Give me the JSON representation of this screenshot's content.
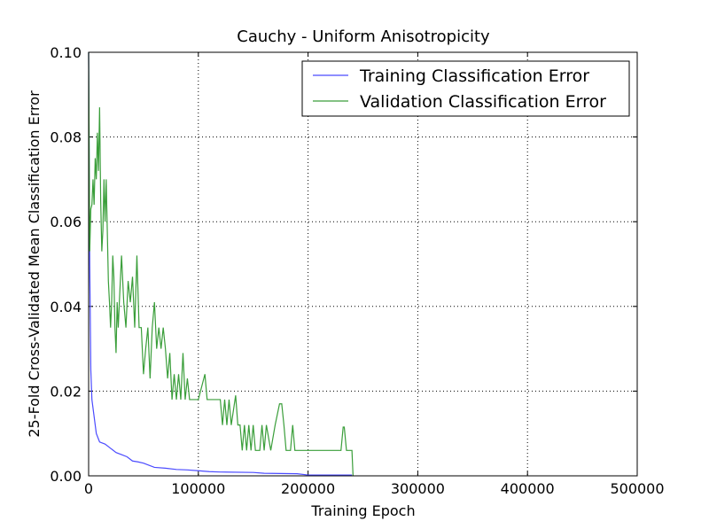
{
  "chart_data": {
    "type": "line",
    "title": "Cauchy - Uniform Anisotropicity",
    "xlabel": "Training Epoch",
    "ylabel": "25-Fold Cross-Validated Mean Classification Error",
    "xlim": [
      0,
      500000
    ],
    "ylim": [
      0,
      0.1
    ],
    "xticks": [
      0,
      100000,
      200000,
      300000,
      400000,
      500000
    ],
    "yticks": [
      {
        "value": 0,
        "label": "0.00"
      },
      {
        "value": 0.02,
        "label": "0.02"
      },
      {
        "value": 0.04,
        "label": "0.04"
      },
      {
        "value": 0.06,
        "label": "0.06"
      },
      {
        "value": 0.08,
        "label": "0.08"
      },
      {
        "value": 0.1,
        "label": "0.10"
      }
    ],
    "grid": true,
    "legend": "upper right",
    "series": [
      {
        "name": "Training Classification Error",
        "color": "#4b4bff",
        "x": [
          0,
          1000,
          2000,
          3000,
          5000,
          7000,
          10000,
          15000,
          20000,
          25000,
          30000,
          35000,
          40000,
          45000,
          50000,
          55000,
          60000,
          70000,
          80000,
          90000,
          100000,
          110000,
          120000,
          150000,
          160000,
          190000,
          200000,
          240000
        ],
        "values": [
          0.1,
          0.05,
          0.025,
          0.018,
          0.014,
          0.01,
          0.008,
          0.0075,
          0.0065,
          0.0055,
          0.005,
          0.0045,
          0.0035,
          0.0033,
          0.003,
          0.0025,
          0.002,
          0.0018,
          0.0015,
          0.0014,
          0.0012,
          0.001,
          0.0009,
          0.0008,
          0.0006,
          0.0005,
          0.0002,
          0.0002
        ]
      },
      {
        "name": "Validation Classification Error",
        "color": "#3a9e3a",
        "x": [
          0,
          1000,
          2000,
          3000,
          4000,
          5000,
          6000,
          7000,
          8000,
          9000,
          10000,
          11000,
          12000,
          13000,
          14000,
          15000,
          16000,
          17000,
          18000,
          19000,
          20000,
          21000,
          22000,
          23000,
          24000,
          25000,
          26000,
          27000,
          28000,
          30000,
          32000,
          34000,
          36000,
          38000,
          40000,
          42000,
          44000,
          46000,
          48000,
          50000,
          52000,
          54000,
          56000,
          58000,
          60000,
          62000,
          64000,
          66000,
          68000,
          70000,
          72000,
          74000,
          76000,
          78000,
          80000,
          82000,
          84000,
          86000,
          88000,
          90000,
          92000,
          96000,
          100000,
          106000,
          108000,
          120000,
          122000,
          124000,
          126000,
          128000,
          130000,
          134000,
          136000,
          138000,
          140000,
          142000,
          144000,
          146000,
          148000,
          150000,
          152000,
          156000,
          158000,
          160000,
          162000,
          166000,
          170000,
          174000,
          176000,
          178000,
          180000,
          184000,
          186000,
          188000,
          230000,
          232000,
          233000,
          235000,
          240000,
          241000
        ],
        "values": [
          0.1,
          0.053,
          0.063,
          0.064,
          0.07,
          0.064,
          0.075,
          0.07,
          0.081,
          0.072,
          0.087,
          0.065,
          0.053,
          0.058,
          0.07,
          0.06,
          0.07,
          0.058,
          0.046,
          0.041,
          0.035,
          0.041,
          0.052,
          0.047,
          0.035,
          0.029,
          0.041,
          0.035,
          0.041,
          0.052,
          0.041,
          0.035,
          0.046,
          0.041,
          0.047,
          0.035,
          0.052,
          0.035,
          0.035,
          0.024,
          0.03,
          0.035,
          0.023,
          0.035,
          0.041,
          0.03,
          0.035,
          0.03,
          0.035,
          0.03,
          0.023,
          0.029,
          0.018,
          0.024,
          0.018,
          0.024,
          0.018,
          0.029,
          0.018,
          0.023,
          0.018,
          0.018,
          0.018,
          0.024,
          0.018,
          0.018,
          0.012,
          0.018,
          0.012,
          0.018,
          0.012,
          0.019,
          0.012,
          0.012,
          0.006,
          0.012,
          0.006,
          0.012,
          0.006,
          0.012,
          0.006,
          0.006,
          0.012,
          0.006,
          0.012,
          0.006,
          0.012,
          0.017,
          0.017,
          0.012,
          0.006,
          0.006,
          0.012,
          0.006,
          0.006,
          0.0115,
          0.0115,
          0.006,
          0.006,
          0
        ]
      }
    ]
  }
}
